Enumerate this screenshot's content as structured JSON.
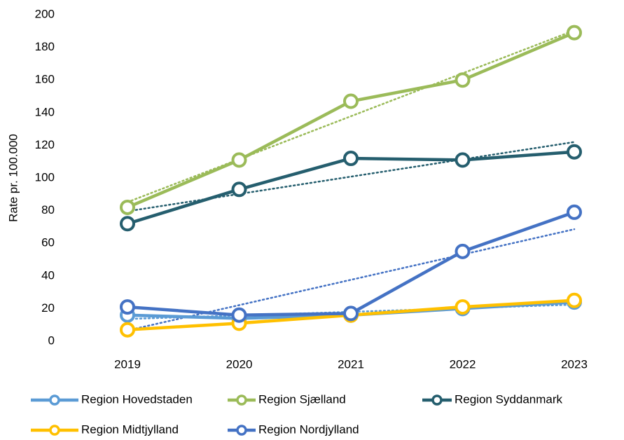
{
  "chart_data": {
    "type": "line",
    "y_label": "Rate pr. 100.000",
    "categories": [
      "2019",
      "2020",
      "2021",
      "2022",
      "2023"
    ],
    "series": [
      {
        "name": "Region Hovedstaden",
        "color": "#5b9bd5",
        "values": [
          16,
          14,
          16,
          20,
          24
        ]
      },
      {
        "name": "Region Sjælland",
        "color": "#9bbb59",
        "values": [
          82,
          111,
          147,
          160,
          189
        ]
      },
      {
        "name": "Region Syddanmark",
        "color": "#255e6e",
        "values": [
          72,
          93,
          112,
          111,
          116
        ]
      },
      {
        "name": "Region Midtjylland",
        "color": "#ffc000",
        "values": [
          7,
          11,
          16,
          21,
          25
        ]
      },
      {
        "name": "Region Nordjylland",
        "color": "#4472c4",
        "values": [
          21,
          16,
          17,
          55,
          79
        ]
      }
    ],
    "trendline": true,
    "ylim": [
      0,
      200
    ],
    "yticks": [
      0,
      20,
      40,
      60,
      80,
      100,
      120,
      140,
      160,
      180,
      200
    ],
    "grid": false
  }
}
